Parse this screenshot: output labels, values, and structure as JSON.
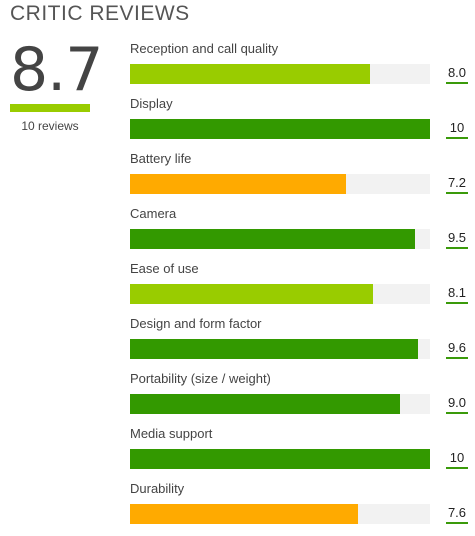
{
  "header": {
    "title": "CRITIC REVIEWS"
  },
  "overall": {
    "score": "8.7",
    "count": "10 reviews",
    "color": "#99cc00"
  },
  "colors": {
    "green": "#339900",
    "lime": "#99cc00",
    "orange": "#ffaa00"
  },
  "ratings": [
    {
      "label": "Reception and call quality",
      "value": "8.0",
      "score": 8.0,
      "color": "#99cc00"
    },
    {
      "label": "Display",
      "value": "10",
      "score": 10,
      "color": "#339900"
    },
    {
      "label": "Battery life",
      "value": "7.2",
      "score": 7.2,
      "color": "#ffaa00"
    },
    {
      "label": "Camera",
      "value": "9.5",
      "score": 9.5,
      "color": "#339900"
    },
    {
      "label": "Ease of use",
      "value": "8.1",
      "score": 8.1,
      "color": "#99cc00"
    },
    {
      "label": "Design and form factor",
      "value": "9.6",
      "score": 9.6,
      "color": "#339900"
    },
    {
      "label": "Portability (size / weight)",
      "value": "9.0",
      "score": 9.0,
      "color": "#339900"
    },
    {
      "label": "Media support",
      "value": "10",
      "score": 10,
      "color": "#339900"
    },
    {
      "label": "Durability",
      "value": "7.6",
      "score": 7.6,
      "color": "#ffaa00"
    }
  ]
}
